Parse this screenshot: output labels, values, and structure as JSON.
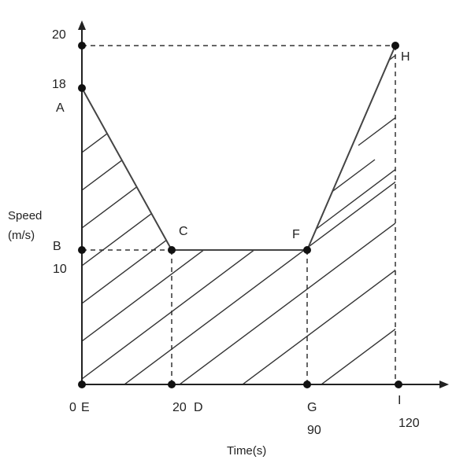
{
  "axes": {
    "y_title_line1": "Speed",
    "y_title_line2": "(m/s)",
    "x_title": "Time(s)",
    "y_ticks": {
      "t20": "20",
      "t18": "18",
      "t10": "10"
    },
    "x_ticks": {
      "t0": "0",
      "t20": "20",
      "t90": "90",
      "t120": "120"
    }
  },
  "points": {
    "A": "A",
    "B": "B",
    "C": "C",
    "D": "D",
    "E": "E",
    "F": "F",
    "G": "G",
    "H": "H",
    "I": "I"
  },
  "graph_data": {
    "speed_time_path": [
      {
        "point": "A",
        "t": 0,
        "v": 18
      },
      {
        "point": "C",
        "t": 20,
        "v": 10
      },
      {
        "point": "F",
        "t": 90,
        "v": 10
      },
      {
        "point": "H",
        "t": 120,
        "v": 20
      }
    ]
  },
  "colors": {
    "ink": "#222222",
    "background": "#ffffff"
  }
}
